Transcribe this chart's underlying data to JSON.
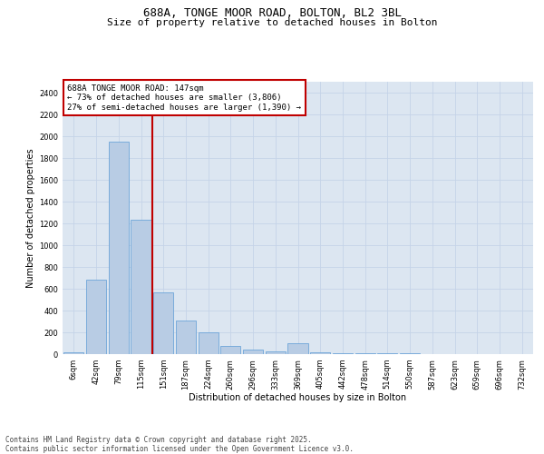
{
  "title1": "688A, TONGE MOOR ROAD, BOLTON, BL2 3BL",
  "title2": "Size of property relative to detached houses in Bolton",
  "xlabel": "Distribution of detached houses by size in Bolton",
  "ylabel": "Number of detached properties",
  "categories": [
    "6sqm",
    "42sqm",
    "79sqm",
    "115sqm",
    "151sqm",
    "187sqm",
    "224sqm",
    "260sqm",
    "296sqm",
    "333sqm",
    "369sqm",
    "405sqm",
    "442sqm",
    "478sqm",
    "514sqm",
    "550sqm",
    "587sqm",
    "623sqm",
    "659sqm",
    "696sqm",
    "732sqm"
  ],
  "values": [
    15,
    680,
    1950,
    1230,
    570,
    310,
    200,
    75,
    40,
    25,
    100,
    15,
    5,
    5,
    5,
    5,
    3,
    2,
    2,
    2,
    2
  ],
  "bar_color": "#b8cce4",
  "bar_edge_color": "#5b9bd5",
  "grid_color": "#c5d3e8",
  "background_color": "#dce6f1",
  "vline_color": "#c00000",
  "vline_x_index": 3.5,
  "annotation_text": "688A TONGE MOOR ROAD: 147sqm\n← 73% of detached houses are smaller (3,806)\n27% of semi-detached houses are larger (1,390) →",
  "annotation_box_edgecolor": "#c00000",
  "ylim": [
    0,
    2500
  ],
  "yticks": [
    0,
    200,
    400,
    600,
    800,
    1000,
    1200,
    1400,
    1600,
    1800,
    2000,
    2200,
    2400
  ],
  "footer": "Contains HM Land Registry data © Crown copyright and database right 2025.\nContains public sector information licensed under the Open Government Licence v3.0.",
  "title_fontsize": 9,
  "subtitle_fontsize": 8,
  "axis_label_fontsize": 7,
  "tick_fontsize": 6,
  "annotation_fontsize": 6.5,
  "footer_fontsize": 5.5
}
